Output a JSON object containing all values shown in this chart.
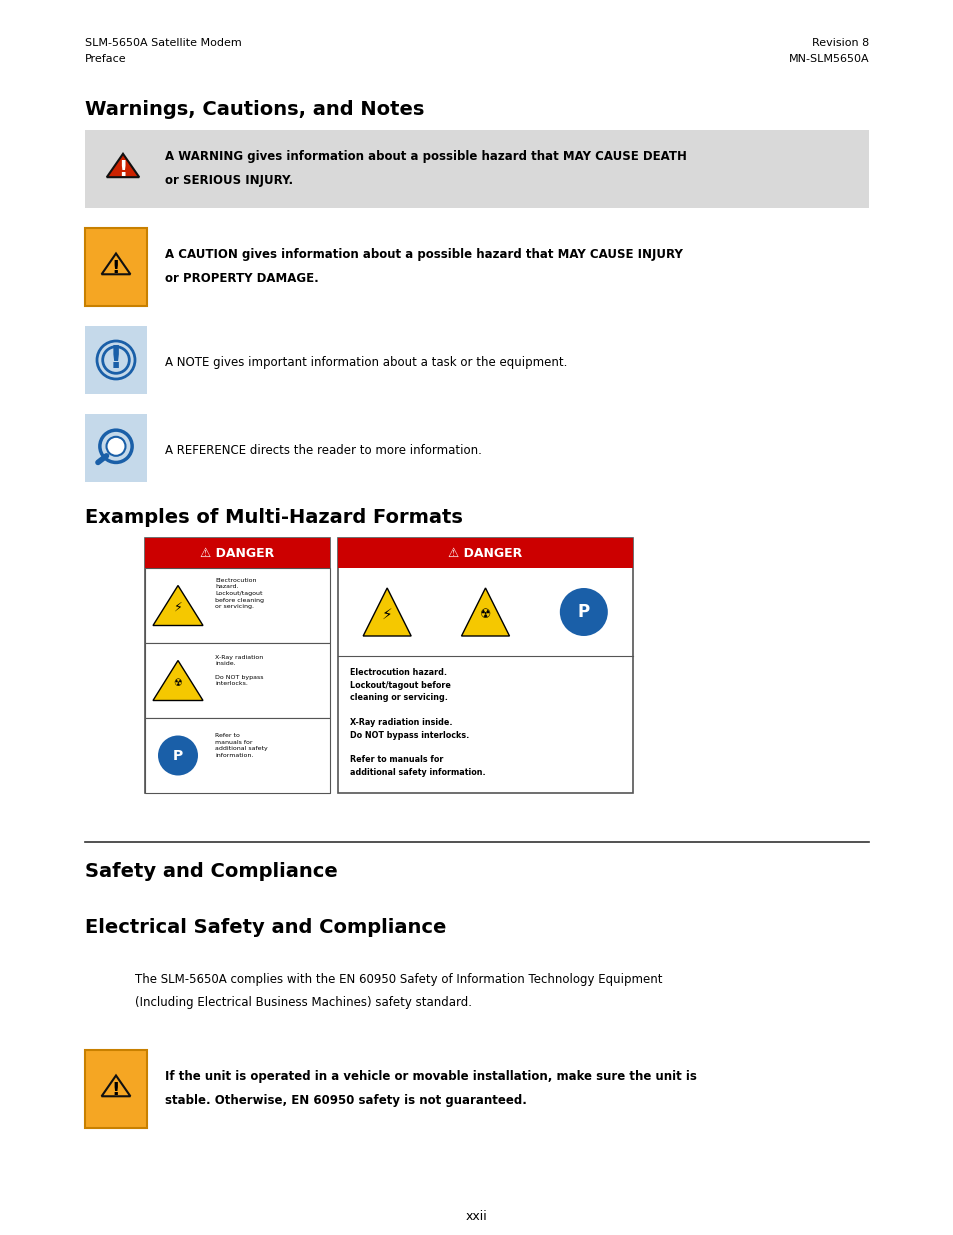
{
  "page_width": 9.54,
  "page_height": 12.35,
  "bg_color": "#ffffff",
  "header_left_line1": "SLM-5650A Satellite Modem",
  "header_left_line2": "Preface",
  "header_right_line1": "Revision 8",
  "header_right_line2": "MN-SLM5650A",
  "section1_title": "Warnings, Cautions, and Notes",
  "warning_text_line1": "A WARNING gives information about a possible hazard that MAY CAUSE DEATH",
  "warning_text_line2": "or SERIOUS INJURY.",
  "caution_text_line1": "A CAUTION gives information about a possible hazard that MAY CAUSE INJURY",
  "caution_text_line2": "or PROPERTY DAMAGE.",
  "note_text": "A NOTE gives important information about a task or the equipment.",
  "ref_text": "A REFERENCE directs the reader to more information.",
  "section2_title": "Examples of Multi-Hazard Formats",
  "section3_title": "Safety and Compliance",
  "section4_title": "Electrical Safety and Compliance",
  "body_text1": "The SLM-5650A complies with the EN 60950 Safety of Information Technology Equipment",
  "body_text2": "(Including Electrical Business Machines) safety standard.",
  "caution2_text_line1": "If the unit is operated in a vehicle or movable installation, make sure the unit is",
  "caution2_text_line2": "stable. Otherwise, EN 60950 safety is not guaranteed.",
  "footer_text": "xxii",
  "danger_red": "#cc0000",
  "yellow_sign": "#f5c800",
  "blue_sign": "#1a5fa8",
  "orange_bg": "#f5a623",
  "light_blue_bg": "#c5d9ea",
  "gray_bg": "#d9d9d9"
}
